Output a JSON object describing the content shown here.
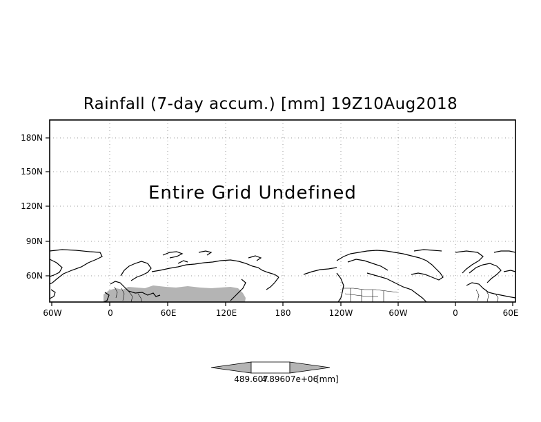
{
  "map": {
    "title": "Rainfall (7-day accum.) [mm] 19Z10Aug2018",
    "notice": "Entire Grid Undefined",
    "lat_labels": [
      "180N",
      "150N",
      "120N",
      "90N",
      "60N"
    ],
    "lon_labels": [
      "60W",
      "0",
      "60E",
      "120E",
      "180",
      "120W",
      "60W",
      "0",
      "60E"
    ],
    "shade_color": "#b4b4b4",
    "grid_line_style": "dotted"
  },
  "colorbar": {
    "left_value": "489.607",
    "right_value": "4.89607e+06",
    "unit": "[mm]",
    "fill_color": "#b4b4b4"
  }
}
